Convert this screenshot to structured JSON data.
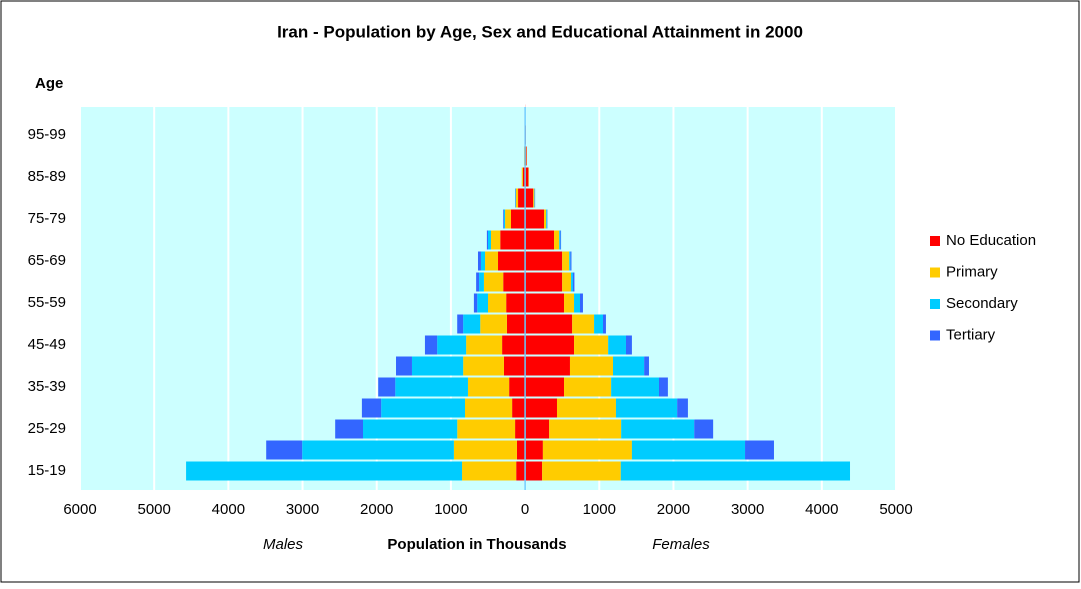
{
  "chart_data": {
    "type": "pyramid",
    "title": "Iran - Population by Age, Sex and Educational Attainment in 2000",
    "y_label": "Age",
    "x_label": "Population in Thousands",
    "males_label": "Males",
    "females_label": "Females",
    "categories": [
      "15-19",
      null,
      "25-29",
      null,
      "35-39",
      null,
      "45-49",
      null,
      "55-59",
      null,
      "65-69",
      null,
      "75-79",
      null,
      "85-89",
      null,
      "95-99",
      null
    ],
    "xlim": [
      -6000,
      5000
    ],
    "xticks": [
      {
        "value": -6000,
        "label": "6000"
      },
      {
        "value": -5000,
        "label": "5000"
      },
      {
        "value": -4000,
        "label": "4000"
      },
      {
        "value": -3000,
        "label": "3000"
      },
      {
        "value": -2000,
        "label": "2000"
      },
      {
        "value": -1000,
        "label": "1000"
      },
      0,
      1000,
      2000,
      3000,
      4000,
      5000
    ],
    "grid": true,
    "series": [
      {
        "name": "No Education",
        "color": "#ff0000",
        "males": [
          -120,
          -110,
          -135,
          -175,
          -215,
          -285,
          -310,
          -245,
          -255,
          -295,
          -365,
          -335,
          -190,
          -95,
          -30,
          -10,
          -3,
          -1
        ],
        "females": [
          230,
          240,
          325,
          430,
          525,
          605,
          660,
          635,
          525,
          500,
          500,
          390,
          255,
          110,
          45,
          20,
          10,
          1
        ]
      },
      {
        "name": "Primary",
        "color": "#ffcc00",
        "males": [
          -730,
          -850,
          -780,
          -635,
          -555,
          -550,
          -485,
          -360,
          -245,
          -260,
          -175,
          -125,
          -80,
          -30,
          -15,
          -5,
          0,
          0
        ],
        "females": [
          1060,
          1200,
          970,
          795,
          635,
          580,
          460,
          295,
          135,
          120,
          95,
          70,
          30,
          15,
          5,
          3,
          0,
          0
        ]
      },
      {
        "name": "Secondary",
        "color": "#00ccff",
        "males": [
          -3720,
          -2045,
          -1270,
          -1130,
          -980,
          -690,
          -390,
          -230,
          -145,
          -65,
          -55,
          -40,
          -15,
          -5,
          0,
          0,
          0,
          0
        ],
        "females": [
          3090,
          1525,
          985,
          825,
          645,
          420,
          240,
          120,
          80,
          25,
          15,
          15,
          10,
          5,
          0,
          0,
          0,
          0
        ]
      },
      {
        "name": "Tertiary",
        "color": "#3366ff",
        "males": [
          0,
          -485,
          -375,
          -260,
          -230,
          -215,
          -165,
          -80,
          -45,
          -40,
          -40,
          -15,
          -10,
          -5,
          0,
          0,
          0,
          0
        ],
        "females": [
          0,
          390,
          255,
          145,
          120,
          65,
          80,
          40,
          40,
          20,
          15,
          10,
          5,
          5,
          0,
          0,
          0,
          0
        ]
      }
    ]
  }
}
